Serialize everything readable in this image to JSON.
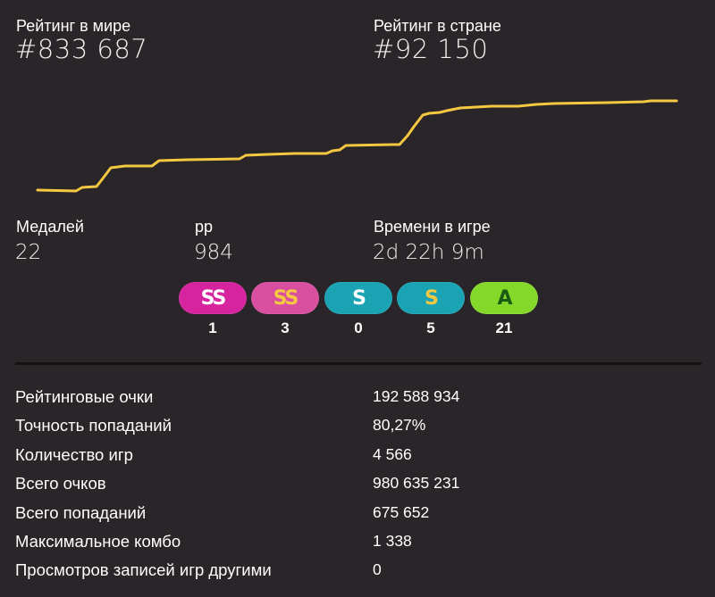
{
  "rank": {
    "global_label": "Рейтинг в мире",
    "global_value": "#833 687",
    "country_label": "Рейтинг в стране",
    "country_value": "#92 150"
  },
  "rank_graph": {
    "line_color": "#f5c842"
  },
  "summary": {
    "medals_label": "Медалей",
    "medals_value": "22",
    "pp_label": "pp",
    "pp_value": "984",
    "playtime_label": "Времени в игре",
    "playtime_value": "2d 22h 9m"
  },
  "grades": [
    {
      "label": "SS",
      "count": "1",
      "color": "#d6239e",
      "text_color": "#ffffff",
      "icon": "grade-ssh-badge"
    },
    {
      "label": "SS",
      "count": "3",
      "color": "#d94fa0",
      "text_color": "#f5c842",
      "icon": "grade-ss-badge"
    },
    {
      "label": "S",
      "count": "0",
      "color": "#1aa3b3",
      "text_color": "#ffffff",
      "icon": "grade-sh-badge"
    },
    {
      "label": "S",
      "count": "5",
      "color": "#1aa3b3",
      "text_color": "#f5c842",
      "icon": "grade-s-badge"
    },
    {
      "label": "A",
      "count": "21",
      "color": "#84d82a",
      "text_color": "#1a5a12",
      "icon": "grade-a-badge"
    }
  ],
  "stats": [
    {
      "label": "Рейтинговые очки",
      "value": "192 588 934"
    },
    {
      "label": "Точность попаданий",
      "value": "80,27%"
    },
    {
      "label": "Количество игр",
      "value": "4 566"
    },
    {
      "label": "Всего очков",
      "value": "980 635 231"
    },
    {
      "label": "Всего попаданий",
      "value": "675 652"
    },
    {
      "label": "Максимальное комбо",
      "value": "1 338"
    },
    {
      "label": "Просмотров записей игр другими",
      "value": "0"
    }
  ]
}
